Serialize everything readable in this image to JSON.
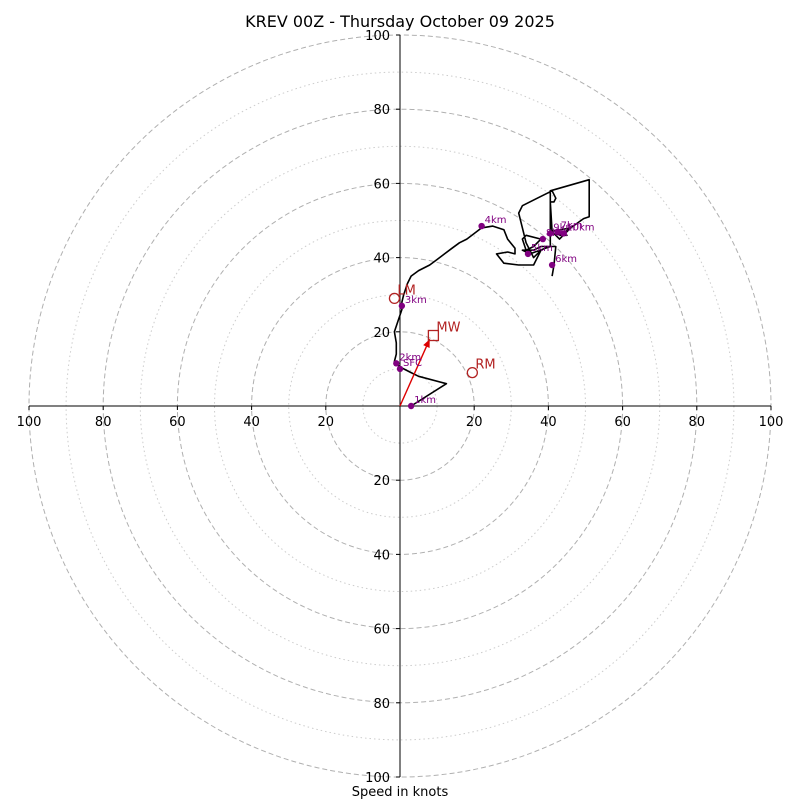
{
  "chart_data": {
    "type": "hodograph",
    "title": "KREV 00Z - Thursday October 09 2025",
    "xlabel": "Speed in knots",
    "units": "knots",
    "max_radius": 100,
    "rings_major": [
      20,
      40,
      60,
      80,
      100
    ],
    "rings_minor": [
      10,
      30,
      50,
      70,
      90
    ],
    "axis_tick_values": [
      100,
      80,
      60,
      40,
      20
    ],
    "x_tick_labels": [
      "100",
      "80",
      "60",
      "40",
      "20",
      "",
      "20",
      "40",
      "60",
      "80",
      "100"
    ],
    "y_tick_labels_up": [
      "20",
      "40",
      "60",
      "80",
      "100"
    ],
    "y_tick_labels_down": [
      "20",
      "40",
      "60",
      "80",
      "100"
    ],
    "hodograph": {
      "color": "#000000",
      "u": [
        3,
        12.5,
        5,
        3,
        0,
        -1.5,
        -1,
        -1,
        -1.5,
        -0.5,
        0.5,
        0.5,
        1,
        2,
        3,
        5,
        8,
        10,
        12,
        14,
        16,
        18,
        20,
        22,
        25,
        28,
        29,
        31,
        31,
        29,
        26,
        28,
        32,
        36,
        38,
        36,
        34,
        32,
        33,
        37,
        41,
        42,
        41.5,
        40.5,
        41,
        43,
        46,
        40.5,
        40.5,
        45,
        43,
        46,
        49.5,
        51,
        51,
        51,
        40.5,
        40.5,
        35,
        33,
        34,
        33,
        34,
        38,
        36,
        34,
        36,
        38,
        42,
        41.5,
        41
      ],
      "v": [
        0,
        6,
        8,
        9,
        10.5,
        12,
        14,
        17,
        20,
        23,
        26,
        28,
        30,
        33,
        35,
        36.5,
        38,
        39.5,
        41,
        42.5,
        44,
        45,
        46.5,
        48,
        48.5,
        47.5,
        45,
        42.5,
        41,
        41.5,
        41,
        38.5,
        38,
        38,
        42,
        40,
        44,
        52,
        54,
        56,
        58,
        56,
        55,
        55,
        47,
        45,
        48,
        47,
        46.5,
        46,
        46,
        48,
        50.5,
        51,
        61,
        61,
        58,
        43,
        41,
        42,
        42,
        45,
        46,
        45,
        43,
        42,
        42,
        43,
        43,
        38,
        35
      ]
    },
    "km_points": [
      {
        "label": "1km",
        "u": 3,
        "v": 0
      },
      {
        "label": "SFC",
        "u": 0,
        "v": 10
      },
      {
        "label": "2km",
        "u": -1,
        "v": 11.5
      },
      {
        "label": "3km",
        "u": 0.5,
        "v": 27
      },
      {
        "label": "4km",
        "u": 22,
        "v": 48.5
      },
      {
        "label": "5km",
        "u": 34.5,
        "v": 41
      },
      {
        "label": "6km",
        "u": 41,
        "v": 38
      },
      {
        "label": "7km",
        "u": 42.5,
        "v": 47
      },
      {
        "label": "8km",
        "u": 38.5,
        "v": 45
      },
      {
        "label": "9km",
        "u": 40.5,
        "v": 46.5
      },
      {
        "label": "10km",
        "u": 44,
        "v": 46.5
      }
    ],
    "km_color": "#800080",
    "storm_motion": [
      {
        "label": "LM",
        "u": -1.5,
        "v": 29,
        "shape": "circle"
      },
      {
        "label": "RM",
        "u": 19.5,
        "v": 9,
        "shape": "circle"
      },
      {
        "label": "MW",
        "u": 9,
        "v": 19,
        "shape": "square"
      }
    ],
    "storm_color": "#b22222",
    "mean_wind_vector": {
      "u": 8,
      "v": 18,
      "color": "#dd0000"
    }
  }
}
